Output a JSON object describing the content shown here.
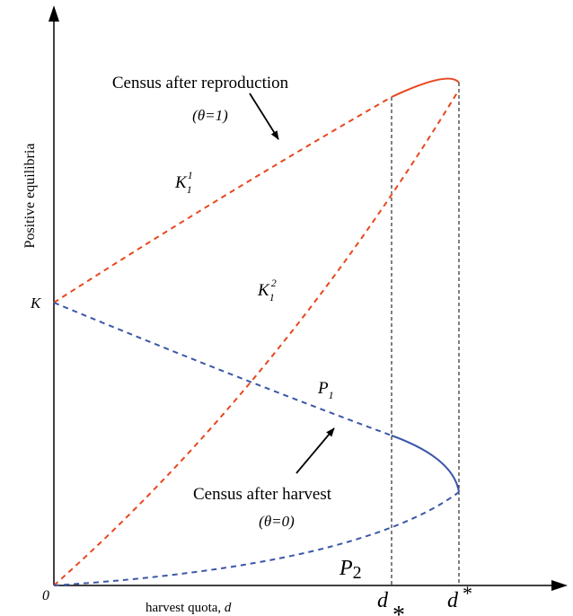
{
  "labels": {
    "y_axis": "Positive equilibria",
    "x_axis": "harvest quota, ",
    "x_axis_var": "d",
    "origin": "0",
    "k_tick": "K",
    "d_low_base": "d",
    "d_low_sub": "*",
    "d_high_base": "d",
    "d_high_sup": "*"
  },
  "annotations": {
    "top_title": "Census after reproduction",
    "top_theta": "(θ=1)",
    "bottom_title": "Census after harvest",
    "bottom_theta": "(θ=0)"
  },
  "curves": {
    "k11": {
      "base": "K",
      "sub": "1",
      "sup": "1"
    },
    "k12": {
      "base": "K",
      "sub": "1",
      "sup": "2"
    },
    "p1": {
      "base": "P",
      "sub": "1"
    },
    "p2": {
      "base": "P",
      "sub": "2"
    }
  },
  "colors": {
    "orange": "#E8471E",
    "blue": "#3B57A8",
    "axis": "#000000"
  }
}
